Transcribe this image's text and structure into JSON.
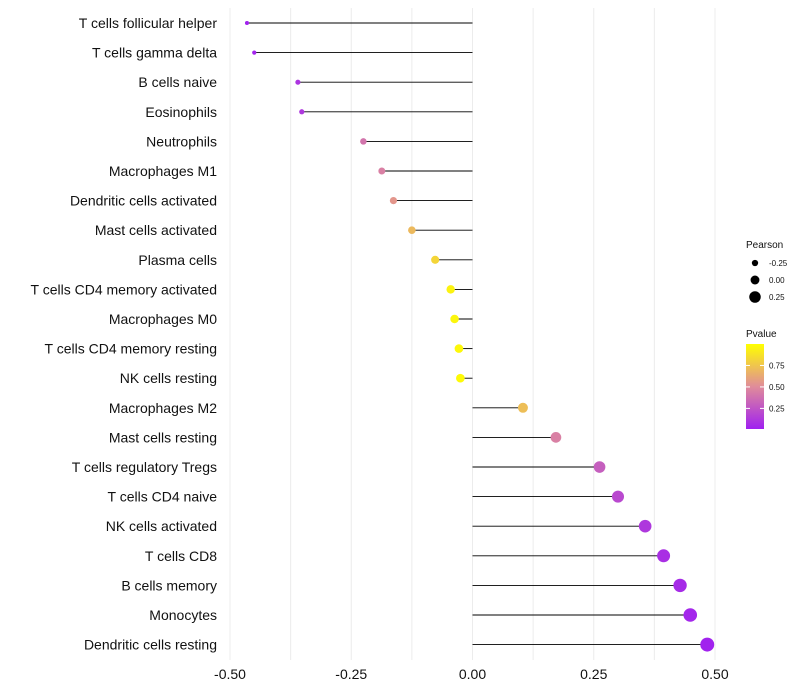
{
  "chart_data": {
    "type": "lollipop",
    "categories": [
      "T cells follicular helper",
      "T cells gamma delta",
      "B cells naive",
      "Eosinophils",
      "Neutrophils",
      "Macrophages M1",
      "Dendritic cells activated",
      "Mast cells activated",
      "Plasma cells",
      "T cells CD4 memory activated",
      "Macrophages M0",
      "T cells CD4 memory resting",
      "NK cells resting",
      "Macrophages M2",
      "Mast cells resting",
      "T cells regulatory  Tregs ",
      "T cells CD4 naive",
      "NK cells activated",
      "T cells CD8",
      "B cells memory",
      "Monocytes",
      "Dendritic cells resting"
    ],
    "pearson": [
      -0.465,
      -0.45,
      -0.36,
      -0.352,
      -0.225,
      -0.187,
      -0.163,
      -0.125,
      -0.077,
      -0.045,
      -0.037,
      -0.028,
      -0.025,
      0.104,
      0.172,
      0.262,
      0.3,
      0.356,
      0.394,
      0.428,
      0.449,
      0.484
    ],
    "pvalue": [
      0.02,
      0.03,
      0.1,
      0.12,
      0.4,
      0.45,
      0.55,
      0.7,
      0.82,
      0.95,
      0.96,
      0.97,
      0.98,
      0.72,
      0.45,
      0.3,
      0.2,
      0.12,
      0.08,
      0.06,
      0.04,
      0.02
    ],
    "xlim": [
      -0.5,
      0.5
    ],
    "xticks": [
      "-0.50",
      "-0.25",
      "0.00",
      "0.25",
      "0.50"
    ],
    "xtick_values": [
      -0.5,
      -0.25,
      0,
      0.25,
      0.5
    ],
    "legend_size": {
      "title": "Pearson",
      "labels": [
        "-0.25",
        "0.00",
        "0.25"
      ],
      "values": [
        -0.25,
        0,
        0.25
      ]
    },
    "legend_color": {
      "title": "Pvalue",
      "labels": [
        "0.75",
        "0.50",
        "0.25"
      ],
      "values": [
        0.75,
        0.5,
        0.25
      ],
      "range": [
        0.01,
        1.0
      ],
      "low_color": "#A020F0",
      "high_color": "#FFFF00"
    },
    "grid": true
  }
}
